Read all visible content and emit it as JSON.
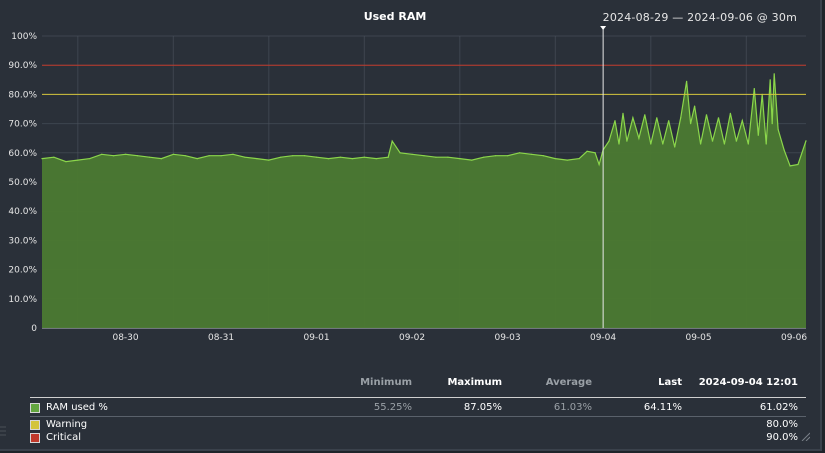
{
  "title": "Used RAM",
  "time_range": "2024-08-29 — 2024-09-06 @ 30m",
  "colors": {
    "background": "#2a3039",
    "area_fill": "#4b7a31",
    "line": "#8bd64b",
    "warning": "#d3c43b",
    "critical": "#c0392b",
    "grid": "#4d5560"
  },
  "legend": {
    "headers": {
      "minimum": "Minimum",
      "maximum": "Maximum",
      "average": "Average",
      "last": "Last",
      "cursor": "2024-09-04 12:01"
    },
    "rows": [
      {
        "name": "RAM used %",
        "color": "#63a63f",
        "minimum": "55.25%",
        "maximum": "87.05%",
        "average": "61.03%",
        "last": "64.11%",
        "cursor": "61.02%"
      },
      {
        "name": "Warning",
        "color": "#d3c43b",
        "cursor": "80.0%"
      },
      {
        "name": "Critical",
        "color": "#c0392b",
        "cursor": "90.0%"
      }
    ]
  },
  "chart_data": {
    "type": "area",
    "title": "Used RAM",
    "ylabel": "",
    "xlabel": "",
    "ylim": [
      0,
      100
    ],
    "yticks": [
      "0",
      "10.0%",
      "20.0%",
      "30.0%",
      "40.0%",
      "50.0%",
      "60.0%",
      "70.0%",
      "80.0%",
      "90.0%",
      "100%"
    ],
    "x_tick_labels": [
      "08-30",
      "08-31",
      "09-01",
      "09-02",
      "09-03",
      "09-04",
      "09-05",
      "09-06"
    ],
    "x_start": "2024-08-29 15:00",
    "x_end": "2024-09-06 15:00",
    "grid": true,
    "cursor_time": "2024-09-04 12:01",
    "thresholds": [
      {
        "name": "Warning",
        "value": 80.0
      },
      {
        "name": "Critical",
        "value": 90.0
      }
    ],
    "series": [
      {
        "name": "RAM used %",
        "points": [
          [
            "2024-08-29 15:00",
            58.0
          ],
          [
            "2024-08-29 18:00",
            58.5
          ],
          [
            "2024-08-29 21:00",
            57.0
          ],
          [
            "2024-08-30 00:00",
            57.5
          ],
          [
            "2024-08-30 03:00",
            58.0
          ],
          [
            "2024-08-30 06:00",
            59.5
          ],
          [
            "2024-08-30 09:00",
            59.0
          ],
          [
            "2024-08-30 12:00",
            59.5
          ],
          [
            "2024-08-30 15:00",
            59.0
          ],
          [
            "2024-08-30 18:00",
            58.5
          ],
          [
            "2024-08-30 21:00",
            58.0
          ],
          [
            "2024-08-31 00:00",
            59.5
          ],
          [
            "2024-08-31 03:00",
            59.0
          ],
          [
            "2024-08-31 06:00",
            58.0
          ],
          [
            "2024-08-31 09:00",
            59.0
          ],
          [
            "2024-08-31 12:00",
            59.0
          ],
          [
            "2024-08-31 15:00",
            59.5
          ],
          [
            "2024-08-31 18:00",
            58.5
          ],
          [
            "2024-08-31 21:00",
            58.0
          ],
          [
            "2024-09-01 00:00",
            57.5
          ],
          [
            "2024-09-01 03:00",
            58.5
          ],
          [
            "2024-09-01 06:00",
            59.0
          ],
          [
            "2024-09-01 09:00",
            59.0
          ],
          [
            "2024-09-01 12:00",
            58.5
          ],
          [
            "2024-09-01 15:00",
            58.0
          ],
          [
            "2024-09-01 18:00",
            58.5
          ],
          [
            "2024-09-01 21:00",
            58.0
          ],
          [
            "2024-09-02 00:00",
            58.5
          ],
          [
            "2024-09-02 03:00",
            58.0
          ],
          [
            "2024-09-02 06:00",
            58.5
          ],
          [
            "2024-09-02 07:00",
            64.0
          ],
          [
            "2024-09-02 09:00",
            60.0
          ],
          [
            "2024-09-02 12:00",
            59.5
          ],
          [
            "2024-09-02 15:00",
            59.0
          ],
          [
            "2024-09-02 18:00",
            58.5
          ],
          [
            "2024-09-02 21:00",
            58.5
          ],
          [
            "2024-09-03 00:00",
            58.0
          ],
          [
            "2024-09-03 03:00",
            57.5
          ],
          [
            "2024-09-03 06:00",
            58.5
          ],
          [
            "2024-09-03 09:00",
            59.0
          ],
          [
            "2024-09-03 12:00",
            59.0
          ],
          [
            "2024-09-03 15:00",
            60.0
          ],
          [
            "2024-09-03 18:00",
            59.5
          ],
          [
            "2024-09-03 21:00",
            59.0
          ],
          [
            "2024-09-04 00:00",
            58.0
          ],
          [
            "2024-09-04 03:00",
            57.5
          ],
          [
            "2024-09-04 06:00",
            58.0
          ],
          [
            "2024-09-04 08:00",
            60.5
          ],
          [
            "2024-09-04 10:00",
            60.0
          ],
          [
            "2024-09-04 11:00",
            56.0
          ],
          [
            "2024-09-04 12:00",
            61.0
          ],
          [
            "2024-09-04 13:30",
            64.0
          ],
          [
            "2024-09-04 15:00",
            71.0
          ],
          [
            "2024-09-04 16:00",
            63.0
          ],
          [
            "2024-09-04 17:00",
            73.5
          ],
          [
            "2024-09-04 18:00",
            64.0
          ],
          [
            "2024-09-04 19:30",
            72.0
          ],
          [
            "2024-09-04 21:00",
            65.0
          ],
          [
            "2024-09-04 22:30",
            73.0
          ],
          [
            "2024-09-05 00:00",
            63.0
          ],
          [
            "2024-09-05 01:30",
            72.0
          ],
          [
            "2024-09-05 03:00",
            63.0
          ],
          [
            "2024-09-05 04:30",
            71.0
          ],
          [
            "2024-09-05 06:00",
            62.0
          ],
          [
            "2024-09-05 07:30",
            72.0
          ],
          [
            "2024-09-05 09:00",
            84.5
          ],
          [
            "2024-09-05 10:00",
            70.0
          ],
          [
            "2024-09-05 11:00",
            76.0
          ],
          [
            "2024-09-05 12:30",
            63.0
          ],
          [
            "2024-09-05 14:00",
            73.0
          ],
          [
            "2024-09-05 15:30",
            64.0
          ],
          [
            "2024-09-05 17:00",
            72.0
          ],
          [
            "2024-09-05 18:30",
            63.0
          ],
          [
            "2024-09-05 20:00",
            73.5
          ],
          [
            "2024-09-05 21:30",
            64.0
          ],
          [
            "2024-09-05 23:00",
            71.0
          ],
          [
            "2024-09-06 00:30",
            63.0
          ],
          [
            "2024-09-06 02:00",
            82.0
          ],
          [
            "2024-09-06 03:00",
            66.0
          ],
          [
            "2024-09-06 04:00",
            80.0
          ],
          [
            "2024-09-06 05:00",
            63.0
          ],
          [
            "2024-09-06 06:00",
            85.0
          ],
          [
            "2024-09-06 06:30",
            70.0
          ],
          [
            "2024-09-06 07:00",
            87.05
          ],
          [
            "2024-09-06 08:00",
            68.0
          ],
          [
            "2024-09-06 09:30",
            61.0
          ],
          [
            "2024-09-06 11:00",
            55.5
          ],
          [
            "2024-09-06 13:00",
            56.0
          ],
          [
            "2024-09-06 15:00",
            64.11
          ]
        ]
      }
    ]
  }
}
